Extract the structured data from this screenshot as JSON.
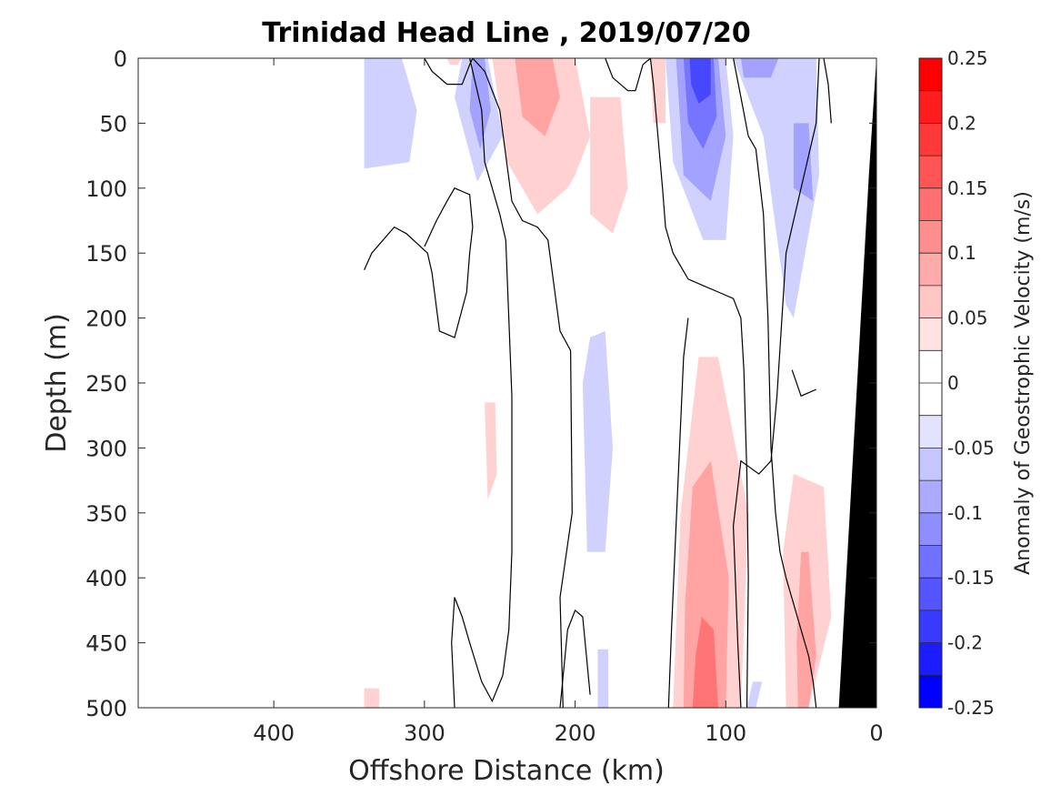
{
  "chart_data": {
    "type": "heatmap",
    "title": "Trinidad Head Line , 2019/07/20",
    "xlabel": "Offshore Distance (km)",
    "ylabel": "Depth (m)",
    "xlim": [
      490,
      0
    ],
    "ylim": [
      0,
      500
    ],
    "xticks": [
      400,
      300,
      200,
      100,
      0
    ],
    "xtick_labels": [
      "400",
      "300",
      "200",
      "100",
      "0"
    ],
    "yticks": [
      0,
      50,
      100,
      150,
      200,
      250,
      300,
      350,
      400,
      450,
      500
    ],
    "ytick_labels": [
      "0",
      "50",
      "100",
      "150",
      "200",
      "250",
      "300",
      "350",
      "400",
      "450",
      "500"
    ],
    "colorbar": {
      "label": "Anomaly of Geostrophic Velocity (m/s)",
      "range": [
        -0.25,
        0.25
      ],
      "ticks": [
        0.25,
        0.2,
        0.15,
        0.1,
        0.05,
        0,
        -0.05,
        -0.1,
        -0.15,
        -0.2,
        -0.25
      ],
      "tick_labels": [
        "0.25",
        "0.2",
        "0.15",
        "0.1",
        "0.05",
        "0",
        "-0.05",
        "-0.1",
        "-0.15",
        "-0.2",
        "-0.25"
      ],
      "colors": [
        "#ff0000",
        "#ff1c1c",
        "#ff3939",
        "#ff5555",
        "#ff7171",
        "#ff8e8e",
        "#ffaaaa",
        "#ffc6c6",
        "#ffe3e3",
        "#ffffff",
        "#ffffff",
        "#e3e3ff",
        "#c6c6ff",
        "#aaaaff",
        "#8e8eff",
        "#7171ff",
        "#5555ff",
        "#3939ff",
        "#1c1cff",
        "#0000ff"
      ]
    },
    "bathymetry_color": "#000000",
    "bathymetry": [
      [
        25,
        500
      ],
      [
        5,
        90
      ],
      [
        0,
        0
      ],
      [
        0,
        500
      ]
    ],
    "regions": [
      {
        "value": -0.05,
        "points": [
          [
            340,
            0
          ],
          [
            315,
            0
          ],
          [
            305,
            40
          ],
          [
            310,
            80
          ],
          [
            340,
            85
          ]
        ]
      },
      {
        "value": -0.05,
        "points": [
          [
            275,
            0
          ],
          [
            258,
            0
          ],
          [
            248,
            60
          ],
          [
            265,
            95
          ],
          [
            280,
            30
          ]
        ]
      },
      {
        "value": -0.1,
        "points": [
          [
            268,
            0
          ],
          [
            260,
            0
          ],
          [
            256,
            40
          ],
          [
            263,
            70
          ],
          [
            270,
            40
          ]
        ]
      },
      {
        "value": -0.05,
        "points": [
          [
            190,
            215
          ],
          [
            180,
            210
          ],
          [
            175,
            300
          ],
          [
            180,
            380
          ],
          [
            192,
            380
          ],
          [
            195,
            250
          ]
        ]
      },
      {
        "value": -0.05,
        "points": [
          [
            185,
            455
          ],
          [
            178,
            455
          ],
          [
            178,
            500
          ],
          [
            185,
            500
          ]
        ]
      },
      {
        "value": -0.05,
        "points": [
          [
            140,
            0
          ],
          [
            100,
            0
          ],
          [
            95,
            60
          ],
          [
            100,
            140
          ],
          [
            115,
            140
          ],
          [
            135,
            80
          ]
        ]
      },
      {
        "value": -0.1,
        "points": [
          [
            133,
            0
          ],
          [
            105,
            0
          ],
          [
            100,
            60
          ],
          [
            110,
            110
          ],
          [
            128,
            90
          ]
        ]
      },
      {
        "value": -0.15,
        "points": [
          [
            128,
            0
          ],
          [
            108,
            0
          ],
          [
            106,
            45
          ],
          [
            115,
            70
          ],
          [
            125,
            50
          ]
        ]
      },
      {
        "value": -0.2,
        "points": [
          [
            124,
            0
          ],
          [
            110,
            0
          ],
          [
            110,
            28
          ],
          [
            118,
            35
          ],
          [
            123,
            20
          ]
        ]
      },
      {
        "value": -0.05,
        "points": [
          [
            95,
            0
          ],
          [
            40,
            0
          ],
          [
            38,
            90
          ],
          [
            55,
            200
          ],
          [
            60,
            190
          ],
          [
            75,
            60
          ]
        ]
      },
      {
        "value": -0.1,
        "points": [
          [
            90,
            0
          ],
          [
            65,
            0
          ],
          [
            70,
            15
          ],
          [
            88,
            15
          ]
        ]
      },
      {
        "value": -0.1,
        "points": [
          [
            55,
            50
          ],
          [
            45,
            50
          ],
          [
            42,
            110
          ],
          [
            55,
            100
          ]
        ]
      },
      {
        "value": -0.05,
        "points": [
          [
            82,
            480
          ],
          [
            76,
            480
          ],
          [
            80,
            500
          ],
          [
            86,
            500
          ]
        ]
      },
      {
        "value": 0.05,
        "points": [
          [
            255,
            0
          ],
          [
            200,
            0
          ],
          [
            190,
            60
          ],
          [
            200,
            90
          ],
          [
            205,
            100
          ],
          [
            225,
            120
          ],
          [
            245,
            80
          ]
        ]
      },
      {
        "value": 0.1,
        "points": [
          [
            240,
            0
          ],
          [
            215,
            0
          ],
          [
            210,
            30
          ],
          [
            220,
            60
          ],
          [
            235,
            45
          ]
        ]
      },
      {
        "value": 0.05,
        "points": [
          [
            190,
            30
          ],
          [
            170,
            30
          ],
          [
            165,
            100
          ],
          [
            175,
            135
          ],
          [
            190,
            120
          ]
        ]
      },
      {
        "value": 0.05,
        "points": [
          [
            150,
            0
          ],
          [
            140,
            0
          ],
          [
            140,
            50
          ],
          [
            148,
            50
          ]
        ]
      },
      {
        "value": 0.05,
        "points": [
          [
            260,
            265
          ],
          [
            253,
            265
          ],
          [
            252,
            320
          ],
          [
            258,
            340
          ]
        ]
      },
      {
        "value": 0.05,
        "points": [
          [
            135,
            500
          ],
          [
            90,
            500
          ],
          [
            85,
            350
          ],
          [
            105,
            230
          ],
          [
            118,
            230
          ],
          [
            130,
            350
          ]
        ]
      },
      {
        "value": 0.1,
        "points": [
          [
            128,
            500
          ],
          [
            100,
            500
          ],
          [
            98,
            400
          ],
          [
            110,
            310
          ],
          [
            122,
            330
          ],
          [
            127,
            420
          ]
        ]
      },
      {
        "value": 0.15,
        "points": [
          [
            122,
            500
          ],
          [
            105,
            500
          ],
          [
            108,
            440
          ],
          [
            116,
            430
          ],
          [
            120,
            460
          ]
        ]
      },
      {
        "value": 0.05,
        "points": [
          [
            60,
            500
          ],
          [
            45,
            500
          ],
          [
            30,
            430
          ],
          [
            35,
            330
          ],
          [
            55,
            320
          ],
          [
            62,
            380
          ]
        ]
      },
      {
        "value": 0.1,
        "points": [
          [
            52,
            500
          ],
          [
            45,
            500
          ],
          [
            40,
            460
          ],
          [
            45,
            380
          ],
          [
            50,
            380
          ],
          [
            53,
            450
          ]
        ]
      },
      {
        "value": 0.05,
        "points": [
          [
            340,
            485
          ],
          [
            330,
            485
          ],
          [
            330,
            500
          ],
          [
            340,
            500
          ]
        ]
      },
      {
        "value": 0.05,
        "points": [
          [
            285,
            0
          ],
          [
            275,
            0
          ],
          [
            278,
            5
          ],
          [
            283,
            5
          ]
        ]
      }
    ],
    "contours": [
      [
        [
          340,
          163
        ],
        [
          335,
          150
        ],
        [
          320,
          130
        ],
        [
          312,
          135
        ],
        [
          298,
          150
        ],
        [
          295,
          165
        ],
        [
          290,
          210
        ],
        [
          280,
          215
        ],
        [
          272,
          180
        ],
        [
          270,
          150
        ],
        [
          268,
          130
        ],
        [
          270,
          105
        ],
        [
          280,
          100
        ],
        [
          285,
          110
        ],
        [
          292,
          125
        ],
        [
          300,
          145
        ]
      ],
      [
        [
          300,
          0
        ],
        [
          295,
          10
        ],
        [
          285,
          20
        ],
        [
          275,
          20
        ],
        [
          270,
          5
        ],
        [
          268,
          0
        ]
      ],
      [
        [
          268,
          0
        ],
        [
          260,
          10
        ],
        [
          250,
          40
        ],
        [
          242,
          110
        ],
        [
          235,
          125
        ],
        [
          225,
          130
        ],
        [
          218,
          140
        ],
        [
          210,
          210
        ],
        [
          203,
          225
        ],
        [
          202,
          350
        ],
        [
          210,
          415
        ],
        [
          208,
          500
        ]
      ],
      [
        [
          280,
          500
        ],
        [
          282,
          450
        ],
        [
          280,
          415
        ],
        [
          275,
          430
        ],
        [
          270,
          450
        ],
        [
          262,
          480
        ],
        [
          255,
          495
        ],
        [
          248,
          475
        ],
        [
          244,
          440
        ],
        [
          242,
          380
        ],
        [
          242,
          260
        ],
        [
          246,
          140
        ],
        [
          250,
          120
        ],
        [
          260,
          80
        ],
        [
          262,
          40
        ],
        [
          270,
          0
        ]
      ],
      [
        [
          210,
          500
        ],
        [
          205,
          440
        ],
        [
          200,
          425
        ],
        [
          195,
          430
        ],
        [
          190,
          490
        ]
      ],
      [
        [
          180,
          0
        ],
        [
          175,
          15
        ],
        [
          165,
          25
        ],
        [
          160,
          25
        ],
        [
          155,
          5
        ],
        [
          150,
          0
        ]
      ],
      [
        [
          150,
          0
        ],
        [
          148,
          20
        ],
        [
          145,
          60
        ],
        [
          142,
          100
        ],
        [
          140,
          130
        ],
        [
          135,
          150
        ],
        [
          125,
          170
        ],
        [
          115,
          175
        ],
        [
          105,
          180
        ],
        [
          95,
          185
        ],
        [
          90,
          200
        ],
        [
          88,
          240
        ],
        [
          86,
          320
        ],
        [
          85,
          400
        ],
        [
          86,
          500
        ]
      ],
      [
        [
          95,
          0
        ],
        [
          90,
          30
        ],
        [
          85,
          60
        ],
        [
          80,
          70
        ],
        [
          78,
          90
        ],
        [
          75,
          120
        ],
        [
          72,
          200
        ],
        [
          70,
          300
        ],
        [
          67,
          350
        ],
        [
          64,
          380
        ],
        [
          60,
          400
        ],
        [
          55,
          420
        ],
        [
          50,
          440
        ],
        [
          45,
          460
        ],
        [
          42,
          480
        ],
        [
          40,
          500
        ]
      ],
      [
        [
          38,
          0
        ],
        [
          40,
          50
        ],
        [
          50,
          100
        ],
        [
          60,
          150
        ],
        [
          66,
          260
        ],
        [
          70,
          310
        ],
        [
          78,
          320
        ],
        [
          90,
          310
        ],
        [
          95,
          360
        ],
        [
          92,
          450
        ],
        [
          90,
          500
        ]
      ],
      [
        [
          56,
          240
        ],
        [
          50,
          260
        ],
        [
          40,
          255
        ]
      ],
      [
        [
          35,
          0
        ],
        [
          32,
          20
        ],
        [
          30,
          50
        ]
      ],
      [
        [
          138,
          500
        ],
        [
          136,
          440
        ],
        [
          133,
          360
        ],
        [
          128,
          230
        ],
        [
          125,
          200
        ]
      ]
    ]
  }
}
